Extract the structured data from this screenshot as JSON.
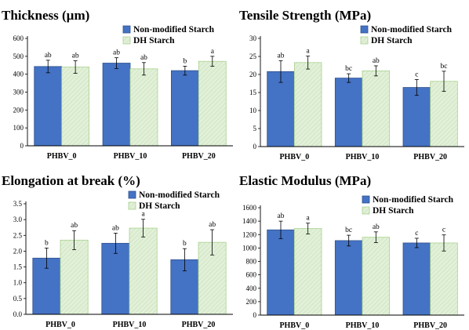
{
  "colors": {
    "nonmod": "#4472C4",
    "nonmod_edge": "#2F528F",
    "dh": "#E2F0D9",
    "dh_edge": "#A9D18E",
    "hatch": "#C5E0B4"
  },
  "chart_data": [
    {
      "type": "bar",
      "title": "Thickness (µm)",
      "categories": [
        "PHBV_0",
        "PHBV_10",
        "PHBV_20"
      ],
      "ylim": [
        0,
        600
      ],
      "yticks": [
        "0",
        "100",
        "200",
        "300",
        "400",
        "500",
        "600"
      ],
      "legend_position": "top-right",
      "series": [
        {
          "name": "Non-modified Starch",
          "values": [
            443,
            462,
            420
          ],
          "errors": [
            35,
            30,
            25
          ],
          "letters": [
            "ab",
            "ab",
            "b"
          ]
        },
        {
          "name": "DH Starch",
          "values": [
            440,
            430,
            472
          ],
          "errors": [
            35,
            35,
            28
          ],
          "letters": [
            "ab",
            "ab",
            "a"
          ]
        }
      ]
    },
    {
      "type": "bar",
      "title": "Tensile Strength (MPa)",
      "categories": [
        "PHBV_0",
        "PHBV_10",
        "PHBV_20"
      ],
      "ylim": [
        0,
        30
      ],
      "yticks": [
        "0",
        "5",
        "10",
        "15",
        "20",
        "25",
        "30"
      ],
      "legend_position": "top-right",
      "series": [
        {
          "name": "Non-modified Starch",
          "values": [
            20.8,
            19.0,
            16.4
          ],
          "errors": [
            3.0,
            1.2,
            2.2
          ],
          "letters": [
            "ab",
            "bc",
            "c"
          ]
        },
        {
          "name": "DH Starch",
          "values": [
            23.3,
            21.0,
            18.1
          ],
          "errors": [
            1.8,
            1.4,
            2.8
          ],
          "letters": [
            "a",
            "ab",
            "bc"
          ]
        }
      ]
    },
    {
      "type": "bar",
      "title": "Elongation at break (%)",
      "categories": [
        "PHBV_0",
        "PHBV_10",
        "PHBV_20"
      ],
      "ylim": [
        0,
        3.5
      ],
      "yticks": [
        "0.0",
        "0.5",
        "1.0",
        "1.5",
        "2.0",
        "2.5",
        "3.0",
        "3.5"
      ],
      "legend_position": "top-right",
      "series": [
        {
          "name": "Non-modified Starch",
          "values": [
            1.78,
            2.25,
            1.73
          ],
          "errors": [
            0.32,
            0.32,
            0.35
          ],
          "letters": [
            "b",
            "ab",
            "b"
          ]
        },
        {
          "name": "DH Starch",
          "values": [
            2.35,
            2.73,
            2.28
          ],
          "errors": [
            0.3,
            0.28,
            0.4
          ],
          "letters": [
            "ab",
            "a",
            "ab"
          ]
        }
      ]
    },
    {
      "type": "bar",
      "title": "Elastic Modulus (MPa)",
      "categories": [
        "PHBV_0",
        "PHBV_10",
        "PHBV_20"
      ],
      "ylim": [
        0,
        1600
      ],
      "yticks": [
        "0",
        "200",
        "400",
        "600",
        "800",
        "1000",
        "1200",
        "1400",
        "1600"
      ],
      "legend_position": "top-right",
      "series": [
        {
          "name": "Non-modified Starch",
          "values": [
            1270,
            1110,
            1075
          ],
          "errors": [
            130,
            80,
            70
          ],
          "letters": [
            "ab",
            "bc",
            "c"
          ]
        },
        {
          "name": "DH Starch",
          "values": [
            1290,
            1160,
            1075
          ],
          "errors": [
            80,
            80,
            120
          ],
          "letters": [
            "a",
            "ab",
            "c"
          ]
        }
      ]
    }
  ]
}
